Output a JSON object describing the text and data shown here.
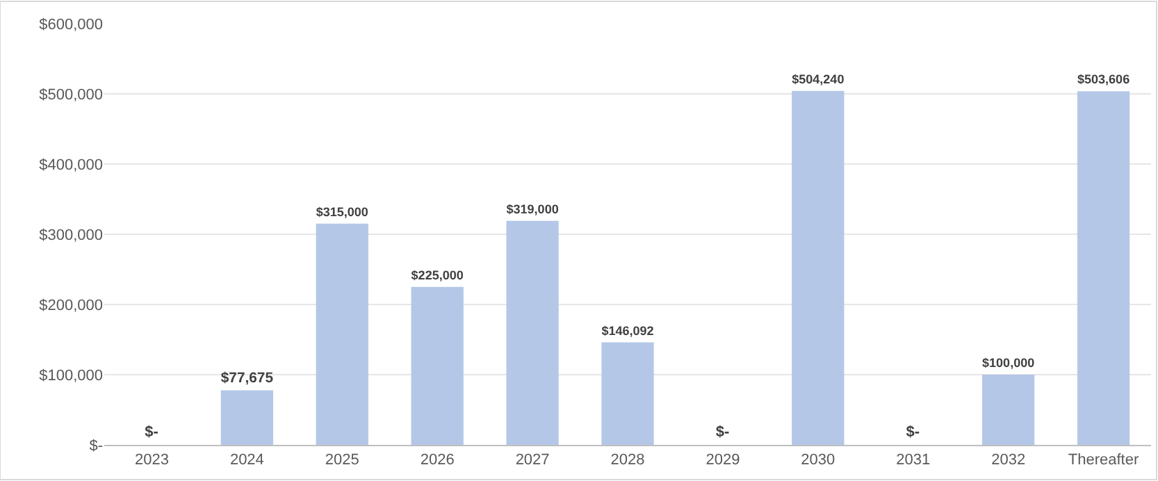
{
  "chart_data": {
    "type": "bar",
    "categories": [
      "2023",
      "2024",
      "2025",
      "2026",
      "2027",
      "2028",
      "2029",
      "2030",
      "2031",
      "2032",
      "Thereafter"
    ],
    "values": [
      0,
      77675,
      315000,
      225000,
      319000,
      146092,
      0,
      504240,
      0,
      100000,
      503606
    ],
    "value_labels": [
      "$-",
      "$77,675",
      "$315,000",
      "$225,000",
      "$319,000",
      "$146,092",
      "$-",
      "$504,240",
      "$-",
      "$100,000",
      "$503,606"
    ],
    "color": "#b4c7e7",
    "ylim": [
      0,
      600000
    ],
    "yticks": [
      {
        "value": 0,
        "label": "$-"
      },
      {
        "value": 100000,
        "label": "$100,000"
      },
      {
        "value": 200000,
        "label": "$200,000"
      },
      {
        "value": 300000,
        "label": "$300,000"
      },
      {
        "value": 400000,
        "label": "$400,000"
      },
      {
        "value": 500000,
        "label": "$500,000"
      },
      {
        "value": 600000,
        "label": "$600,000"
      }
    ],
    "grid": "y",
    "legend": false
  }
}
